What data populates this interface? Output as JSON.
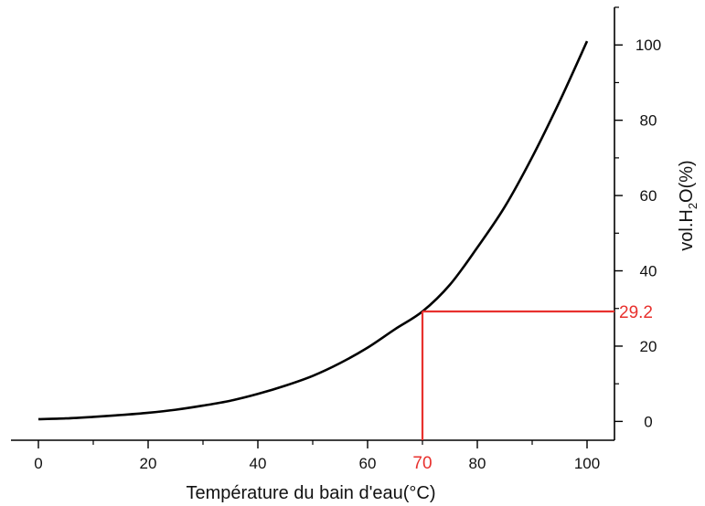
{
  "chart_data": {
    "type": "line",
    "title": "",
    "xlabel": "Température du bain d'eau(°C)",
    "ylabel": {
      "main": "vol.H",
      "subscript": "2",
      "rest": "O(%)"
    },
    "xlim": [
      -5,
      105
    ],
    "ylim": [
      -5,
      110
    ],
    "x_ticks": [
      0,
      20,
      40,
      60,
      80,
      100
    ],
    "x_tick_labels": [
      "0",
      "20",
      "40",
      "60",
      "80",
      "100"
    ],
    "y_ticks": [
      0,
      20,
      40,
      60,
      80,
      100
    ],
    "y_tick_labels": [
      "0",
      "20",
      "40",
      "60",
      "80",
      "100"
    ],
    "y_axis_side": "right",
    "grid": false,
    "series": [
      {
        "color": "#000000",
        "x": [
          0,
          5,
          10,
          15,
          20,
          25,
          30,
          35,
          40,
          45,
          50,
          55,
          60,
          65,
          70,
          75,
          80,
          85,
          90,
          95,
          100
        ],
        "y": [
          0.6,
          0.8,
          1.2,
          1.7,
          2.3,
          3.1,
          4.2,
          5.5,
          7.3,
          9.5,
          12.1,
          15.5,
          19.6,
          24.5,
          29.2,
          36.3,
          46.2,
          57.0,
          70.2,
          85.0,
          101.0
        ]
      }
    ],
    "annotation": {
      "color": "#e8312e",
      "x": 70,
      "y": 29.2,
      "x_label": "70",
      "y_label": "29.2"
    }
  }
}
